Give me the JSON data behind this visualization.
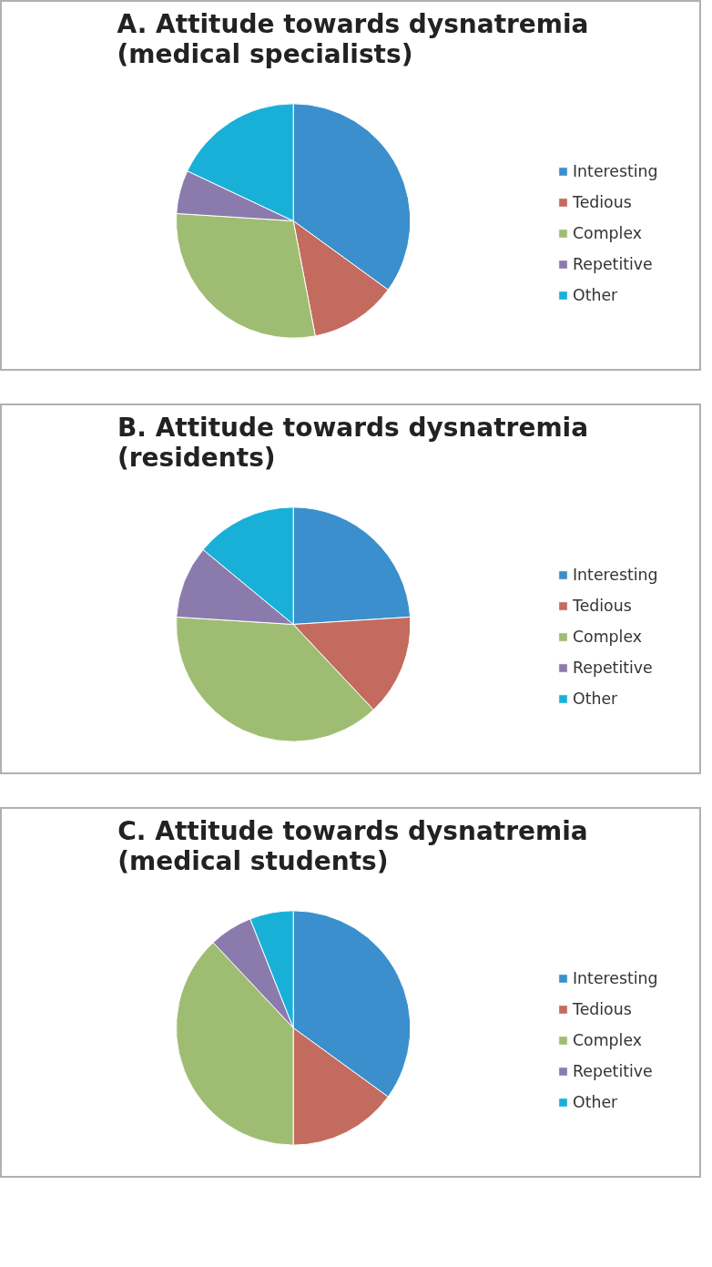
{
  "chart_data": [
    {
      "type": "pie",
      "title": "A. Attitude towards dysnatremia\n(medical specialists)",
      "categories": [
        "Interesting",
        "Tedious",
        "Complex",
        "Repetitive",
        "Other"
      ],
      "values": [
        35,
        12,
        29,
        6,
        18
      ],
      "colors": [
        "#3a8fcc",
        "#c36b5f",
        "#9fbd72",
        "#8b7bad",
        "#19b0d8"
      ],
      "legend": "right"
    },
    {
      "type": "pie",
      "title": "B. Attitude towards dysnatremia\n(residents)",
      "categories": [
        "Interesting",
        "Tedious",
        "Complex",
        "Repetitive",
        "Other"
      ],
      "values": [
        24,
        14,
        38,
        10,
        14
      ],
      "colors": [
        "#3a8fcc",
        "#c36b5f",
        "#9fbd72",
        "#8b7bad",
        "#19b0d8"
      ],
      "legend": "right"
    },
    {
      "type": "pie",
      "title": "C. Attitude towards dysnatremia\n(medical students)",
      "categories": [
        "Interesting",
        "Tedious",
        "Complex",
        "Repetitive",
        "Other"
      ],
      "values": [
        35,
        15,
        38,
        6,
        6
      ],
      "colors": [
        "#3a8fcc",
        "#c36b5f",
        "#9fbd72",
        "#8b7bad",
        "#19b0d8"
      ],
      "legend": "right"
    }
  ]
}
